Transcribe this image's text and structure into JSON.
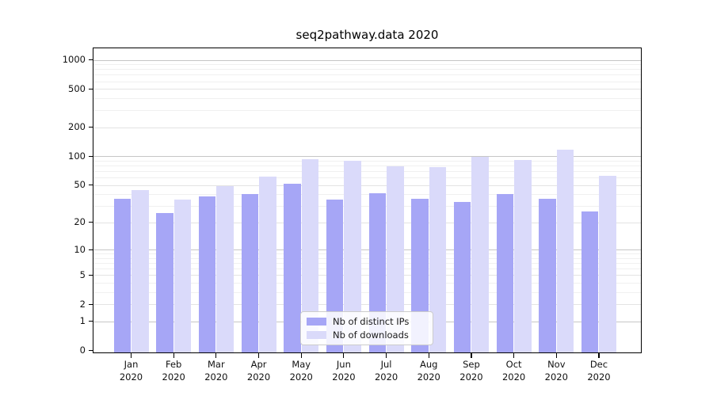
{
  "chart_data": {
    "type": "bar",
    "title": "seq2pathway.data 2020",
    "categories": [
      "Jan",
      "Feb",
      "Mar",
      "Apr",
      "May",
      "Jun",
      "Jul",
      "Aug",
      "Sep",
      "Oct",
      "Nov",
      "Dec"
    ],
    "year": "2020",
    "series": [
      {
        "name": "Nb of distinct IPs",
        "color": "#a6a6f6",
        "values": [
          36,
          25,
          38,
          40,
          52,
          35,
          41,
          36,
          33,
          40,
          36,
          26
        ]
      },
      {
        "name": "Nb of downloads",
        "color": "#dadafa",
        "values": [
          44,
          35,
          49,
          61,
          94,
          90,
          79,
          77,
          99,
          91,
          117,
          62
        ]
      }
    ],
    "y_ticks": [
      0,
      1,
      2,
      5,
      10,
      20,
      50,
      100,
      200,
      500,
      1000
    ],
    "y_minor_ticks": [
      3,
      4,
      6,
      7,
      8,
      9,
      30,
      40,
      60,
      70,
      80,
      90,
      300,
      400,
      600,
      700,
      800,
      900
    ],
    "y_scale": "log10(1+value)",
    "ylim": [
      0,
      1340
    ],
    "xlabel": "",
    "ylabel": "",
    "grid": "on",
    "legend_position": "lower center"
  },
  "colors": {
    "ips_bar": "#a6a6f6",
    "downloads_bar": "#dadafa",
    "grid_major": "#c6c6c6",
    "grid_mid": "#e3e3e3",
    "grid_minor": "#f0f0f0",
    "spine": "#000000",
    "text": "#111111",
    "legend_border": "#cccccc"
  }
}
